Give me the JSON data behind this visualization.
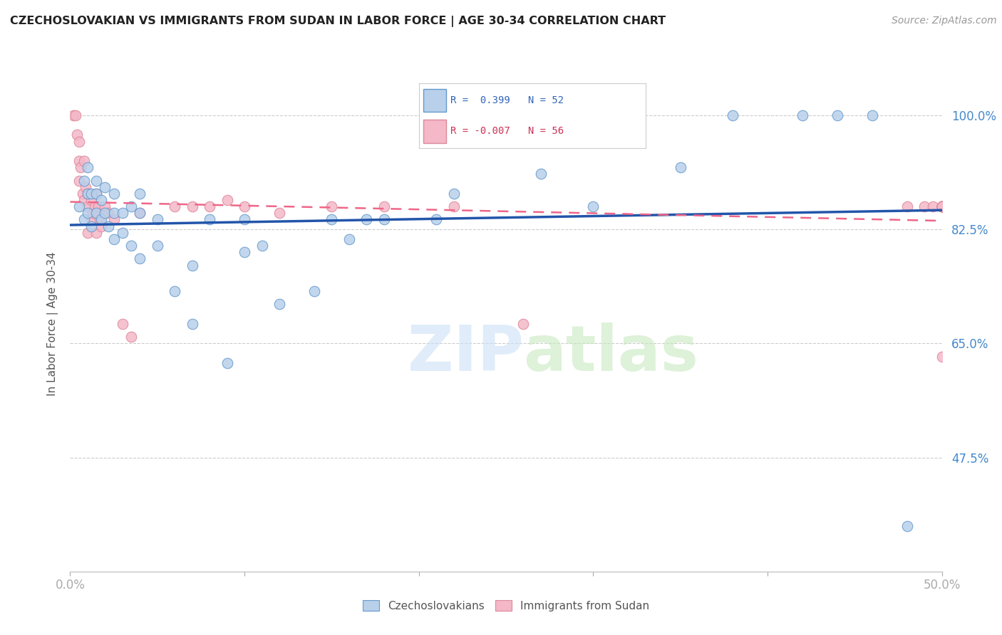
{
  "title": "CZECHOSLOVAKIAN VS IMMIGRANTS FROM SUDAN IN LABOR FORCE | AGE 30-34 CORRELATION CHART",
  "source": "Source: ZipAtlas.com",
  "ylabel": "In Labor Force | Age 30-34",
  "xlim": [
    0.0,
    0.5
  ],
  "ylim": [
    0.3,
    1.06
  ],
  "ytick_values": [
    0.475,
    0.65,
    0.825,
    1.0
  ],
  "ytick_labels": [
    "47.5%",
    "65.0%",
    "82.5%",
    "100.0%"
  ],
  "blue_R": 0.399,
  "blue_N": 52,
  "pink_R": -0.007,
  "pink_N": 56,
  "blue_fill": "#b8d0ea",
  "blue_edge": "#6699cc",
  "pink_fill": "#f4b8c8",
  "pink_edge": "#dd8899",
  "blue_line_color": "#2255aa",
  "pink_line_color": "#ee6688",
  "grid_color": "#cccccc",
  "bg_color": "#ffffff",
  "title_color": "#222222",
  "tick_color": "#4488cc",
  "source_color": "#999999",
  "legend_text_blue": "#3366bb",
  "legend_text_pink": "#cc3355",
  "blue_scatter_x": [
    0.005,
    0.008,
    0.008,
    0.01,
    0.01,
    0.01,
    0.012,
    0.012,
    0.015,
    0.015,
    0.015,
    0.018,
    0.018,
    0.02,
    0.02,
    0.022,
    0.025,
    0.025,
    0.025,
    0.03,
    0.03,
    0.035,
    0.035,
    0.04,
    0.04,
    0.04,
    0.05,
    0.05,
    0.06,
    0.07,
    0.07,
    0.08,
    0.09,
    0.1,
    0.1,
    0.11,
    0.12,
    0.14,
    0.15,
    0.16,
    0.17,
    0.18,
    0.21,
    0.22,
    0.27,
    0.3,
    0.35,
    0.38,
    0.42,
    0.44,
    0.46,
    0.48
  ],
  "blue_scatter_y": [
    0.86,
    0.9,
    0.84,
    0.92,
    0.88,
    0.85,
    0.88,
    0.83,
    0.9,
    0.88,
    0.85,
    0.87,
    0.84,
    0.89,
    0.85,
    0.83,
    0.88,
    0.85,
    0.81,
    0.85,
    0.82,
    0.86,
    0.8,
    0.88,
    0.85,
    0.78,
    0.84,
    0.8,
    0.73,
    0.77,
    0.68,
    0.84,
    0.62,
    0.84,
    0.79,
    0.8,
    0.71,
    0.73,
    0.84,
    0.81,
    0.84,
    0.84,
    0.84,
    0.88,
    0.91,
    0.86,
    0.92,
    1.0,
    1.0,
    1.0,
    1.0,
    0.37
  ],
  "pink_scatter_x": [
    0.002,
    0.003,
    0.004,
    0.005,
    0.005,
    0.005,
    0.006,
    0.007,
    0.008,
    0.008,
    0.009,
    0.01,
    0.01,
    0.01,
    0.012,
    0.012,
    0.013,
    0.014,
    0.015,
    0.015,
    0.015,
    0.016,
    0.017,
    0.018,
    0.02,
    0.022,
    0.025,
    0.03,
    0.035,
    0.04,
    0.06,
    0.07,
    0.08,
    0.09,
    0.1,
    0.12,
    0.15,
    0.18,
    0.22,
    0.26,
    0.48,
    0.49,
    0.495,
    0.5,
    0.5,
    0.5,
    0.5,
    0.5,
    0.5,
    0.5,
    0.5,
    0.5,
    0.5,
    0.5,
    0.5,
    0.5
  ],
  "pink_scatter_y": [
    1.0,
    1.0,
    0.97,
    0.96,
    0.93,
    0.9,
    0.92,
    0.88,
    0.93,
    0.87,
    0.89,
    0.88,
    0.86,
    0.82,
    0.87,
    0.84,
    0.85,
    0.86,
    0.88,
    0.85,
    0.82,
    0.86,
    0.84,
    0.83,
    0.86,
    0.85,
    0.84,
    0.68,
    0.66,
    0.85,
    0.86,
    0.86,
    0.86,
    0.87,
    0.86,
    0.85,
    0.86,
    0.86,
    0.86,
    0.68,
    0.86,
    0.86,
    0.86,
    0.86,
    0.86,
    0.86,
    0.86,
    0.86,
    0.86,
    0.86,
    0.86,
    0.86,
    0.86,
    0.86,
    0.86,
    0.63
  ],
  "watermark_color": "#ddeeff",
  "watermark_zip_color": "#c8dff5",
  "watermark_atlas_color": "#c8e8c0"
}
